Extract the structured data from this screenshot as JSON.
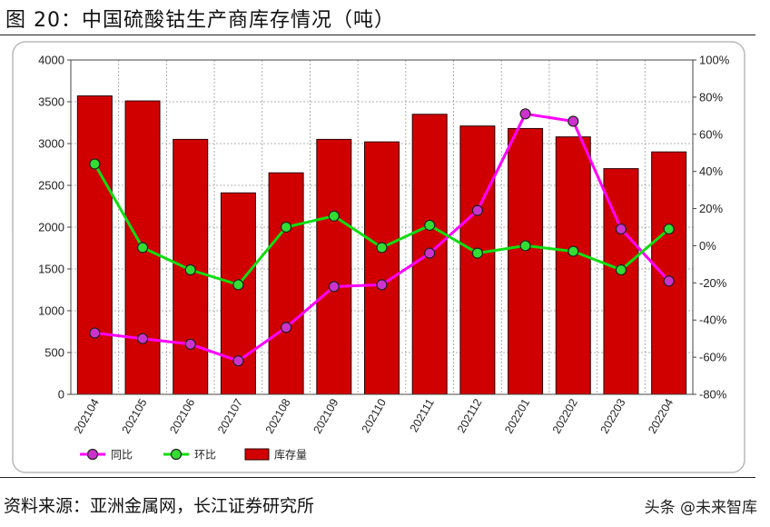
{
  "title": "图 20：中国硫酸钴生产商库存情况（吨）",
  "source": "资料来源：亚洲金属网，长江证券研究所",
  "watermark": "头条 @未来智库",
  "chart_data": {
    "type": "bar",
    "categories": [
      "202104",
      "202105",
      "202106",
      "202107",
      "202108",
      "202109",
      "202110",
      "202111",
      "202112",
      "202201",
      "202202",
      "202203",
      "202204"
    ],
    "left_axis": {
      "ylim": [
        0,
        4000
      ],
      "ticks": [
        0,
        500,
        1000,
        1500,
        2000,
        2500,
        3000,
        3500,
        4000
      ]
    },
    "right_axis": {
      "ylim": [
        -80,
        100
      ],
      "unit": "%",
      "ticks": [
        -80,
        -60,
        -40,
        -20,
        0,
        20,
        40,
        60,
        80,
        100
      ]
    },
    "grid": true,
    "legend_position": "bottom-left",
    "series": [
      {
        "name": "库存量",
        "kind": "bar",
        "axis": "left",
        "color": "#d10000",
        "values": [
          3570,
          3510,
          3050,
          2410,
          2650,
          3050,
          3020,
          3350,
          3210,
          3180,
          3080,
          2700,
          2900
        ]
      },
      {
        "name": "同比",
        "kind": "line",
        "axis": "right",
        "color": "#ff00ff",
        "marker_fill": "#cc33cc",
        "values": [
          -47,
          -50,
          -53,
          -62,
          -44,
          -22,
          -21,
          -4,
          19,
          71,
          67,
          9,
          -19
        ]
      },
      {
        "name": "环比",
        "kind": "line",
        "axis": "right",
        "color": "#11dd11",
        "marker_fill": "#33dd33",
        "values": [
          44,
          -1,
          -13,
          -21,
          10,
          16,
          -1,
          11,
          -4,
          0,
          -3,
          -13,
          9
        ]
      }
    ]
  }
}
